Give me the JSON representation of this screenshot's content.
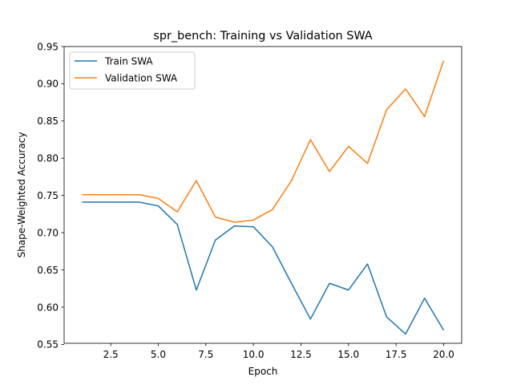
{
  "chart_data": {
    "type": "line",
    "title": "spr_bench: Training vs Validation SWA",
    "xlabel": "Epoch",
    "ylabel": "Shape-Weighted Accuracy",
    "xlim": [
      0.05,
      20.95
    ],
    "ylim": [
      0.5515,
      0.95
    ],
    "xticks": [
      2.5,
      5.0,
      7.5,
      10.0,
      12.5,
      15.0,
      17.5,
      20.0
    ],
    "xtick_labels": [
      "2.5",
      "5.0",
      "7.5",
      "10.0",
      "12.5",
      "15.0",
      "17.5",
      "20.0"
    ],
    "yticks": [
      0.55,
      0.6,
      0.65,
      0.7,
      0.75,
      0.8,
      0.85,
      0.9,
      0.95
    ],
    "ytick_labels": [
      "0.55",
      "0.60",
      "0.65",
      "0.70",
      "0.75",
      "0.80",
      "0.85",
      "0.90",
      "0.95"
    ],
    "grid": false,
    "legend_position": "upper-left",
    "x": [
      1,
      2,
      3,
      4,
      5,
      6,
      7,
      8,
      9,
      10,
      11,
      12,
      13,
      14,
      15,
      16,
      17,
      18,
      19,
      20
    ],
    "series": [
      {
        "name": "Train SWA",
        "color": "#1f77b4",
        "values": [
          0.741,
          0.741,
          0.741,
          0.741,
          0.736,
          0.711,
          0.623,
          0.69,
          0.709,
          0.708,
          0.681,
          0.632,
          0.584,
          0.632,
          0.623,
          0.658,
          0.587,
          0.564,
          0.612,
          0.569
        ]
      },
      {
        "name": "Validation SWA",
        "color": "#ff7f0e",
        "values": [
          0.751,
          0.751,
          0.751,
          0.751,
          0.746,
          0.728,
          0.77,
          0.721,
          0.714,
          0.717,
          0.731,
          0.77,
          0.825,
          0.782,
          0.816,
          0.793,
          0.865,
          0.893,
          0.856,
          0.931
        ]
      }
    ]
  }
}
